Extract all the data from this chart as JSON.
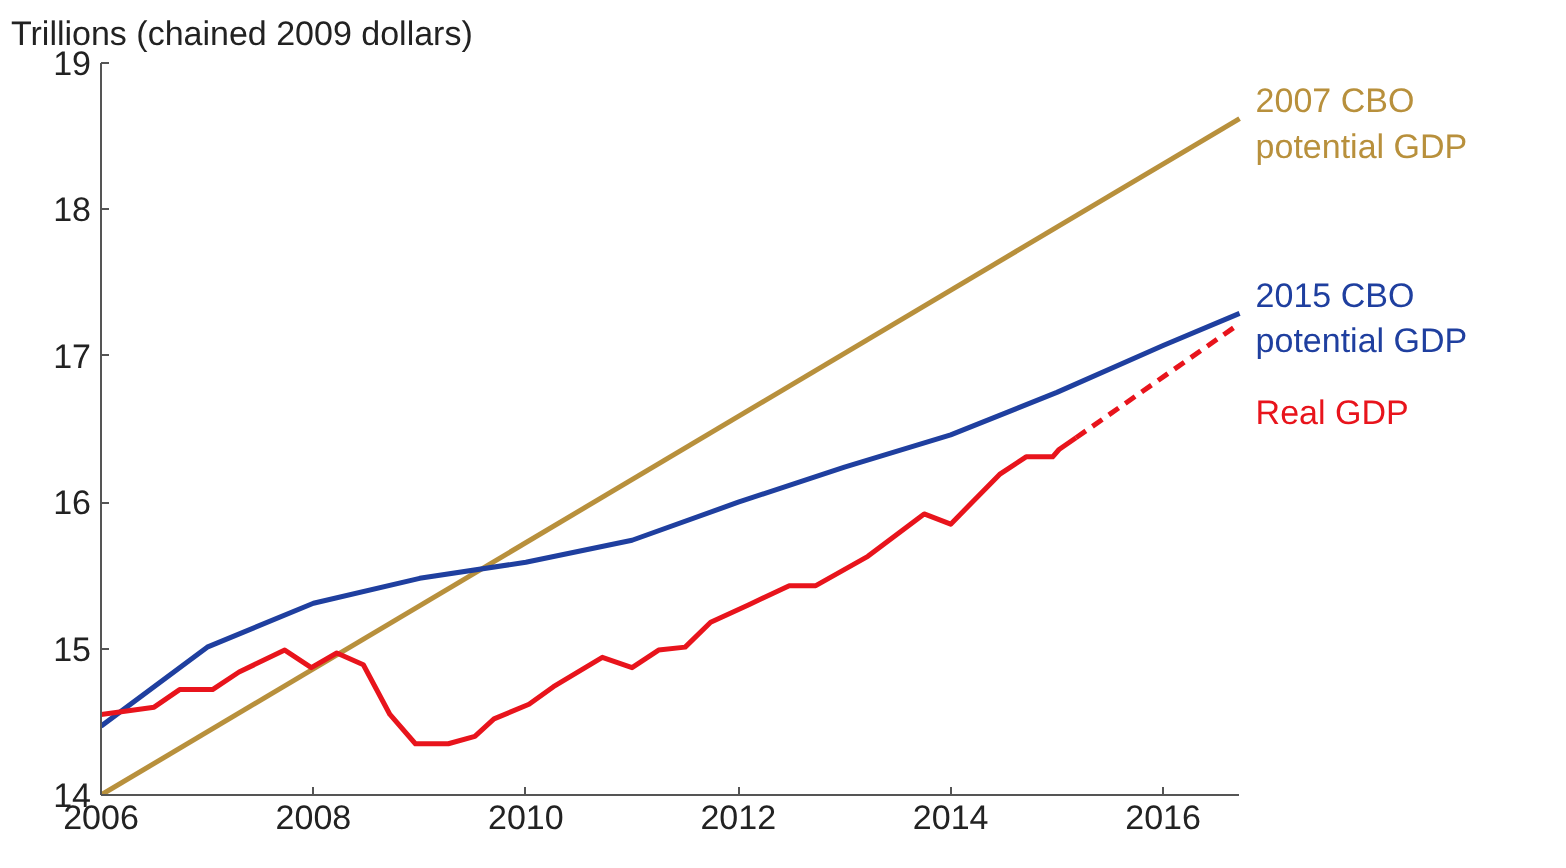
{
  "chart_data": {
    "type": "line",
    "ylabel": "Trillions (chained 2009 dollars)",
    "xlim": [
      2006,
      2016.72
    ],
    "ylim": [
      14,
      19
    ],
    "xticks": [
      2006,
      2008,
      2010,
      2012,
      2014,
      2016
    ],
    "yticks": [
      14,
      15,
      16,
      17,
      18,
      19
    ],
    "grid": false,
    "marker": "none",
    "series": [
      {
        "name": "2007 CBO potential GDP",
        "color": "#b8903c",
        "x": [
          2006,
          2016.72
        ],
        "values": [
          14.0,
          18.62
        ]
      },
      {
        "name": "2015 CBO potential GDP",
        "color": "#1f3f9f",
        "x": [
          2006,
          2007,
          2008,
          2009,
          2010,
          2011,
          2012,
          2013,
          2014,
          2015,
          2016,
          2016.72
        ],
        "values": [
          14.47,
          15.01,
          15.31,
          15.48,
          15.59,
          15.74,
          16.0,
          16.24,
          16.46,
          16.75,
          17.07,
          17.29
        ]
      },
      {
        "name": "Real GDP",
        "color": "#e8141c",
        "line_style": "solid",
        "x": [
          2006.0,
          2006.5,
          2006.74,
          2007.05,
          2007.3,
          2007.73,
          2007.98,
          2008.22,
          2008.47,
          2008.72,
          2008.96,
          2009.27,
          2009.52,
          2009.7,
          2010.03,
          2010.26,
          2010.72,
          2011.0,
          2011.25,
          2011.5,
          2011.74,
          2012.1,
          2012.48,
          2012.73,
          2013.22,
          2013.75,
          2014.0,
          2014.46,
          2014.71,
          2014.96,
          2015.02,
          2015.18
        ],
        "values": [
          14.55,
          14.6,
          14.72,
          14.72,
          14.84,
          14.99,
          14.87,
          14.97,
          14.89,
          14.55,
          14.35,
          14.35,
          14.4,
          14.52,
          14.62,
          14.74,
          14.94,
          14.87,
          14.99,
          15.01,
          15.18,
          15.3,
          15.43,
          15.43,
          15.63,
          15.92,
          15.85,
          16.19,
          16.31,
          16.31,
          16.36,
          16.44
        ]
      },
      {
        "color": "#e8141c",
        "line_style": "dashed",
        "x": [
          2015.18,
          2016.72
        ],
        "values": [
          16.44,
          17.22
        ]
      }
    ]
  }
}
